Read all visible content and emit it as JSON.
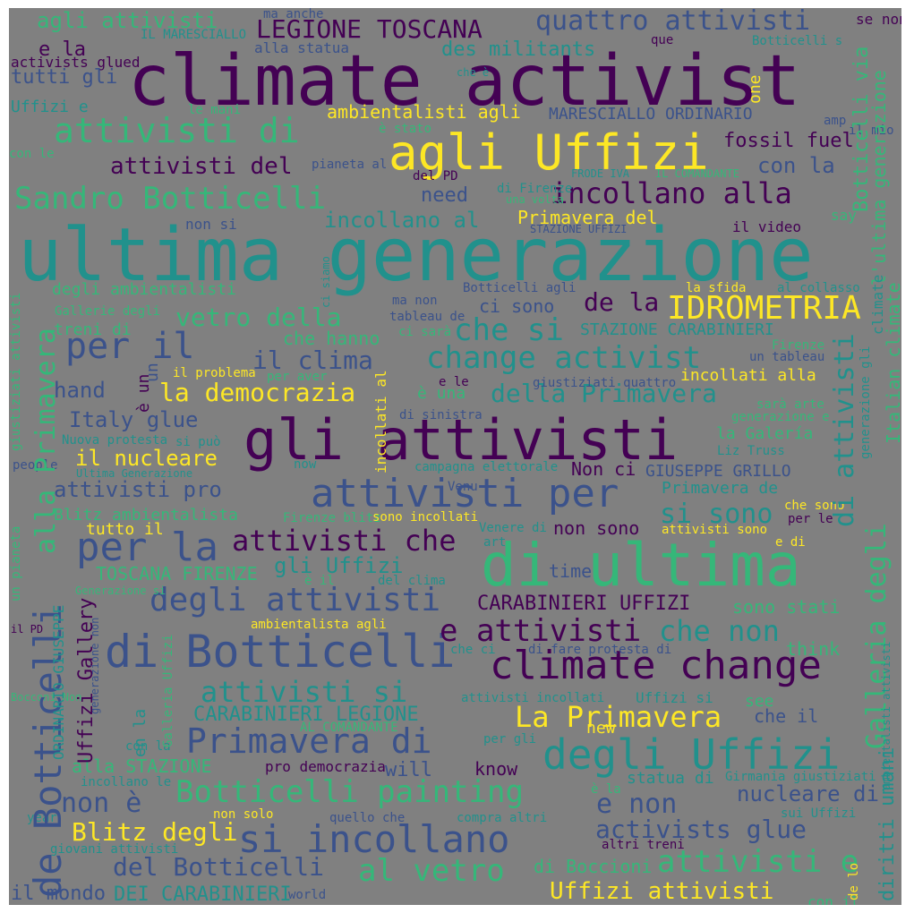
{
  "palette": {
    "background": "#808080",
    "dark_purple": "#440154",
    "indigo": "#3b528b",
    "teal": "#21918c",
    "green": "#35b779",
    "yellow": "#fde725"
  },
  "words": [
    {
      "text": "climate activist",
      "color": "dark_purple"
    },
    {
      "text": "ultima generazione",
      "color": "teal"
    },
    {
      "text": "gli attivisti",
      "color": "dark_purple"
    },
    {
      "text": "di ultima",
      "color": "green"
    },
    {
      "text": "agli Uffizi",
      "color": "yellow"
    },
    {
      "text": "attivisti per",
      "color": "indigo"
    },
    {
      "text": "di Botticelli",
      "color": "indigo"
    },
    {
      "text": "climate change",
      "color": "dark_purple"
    },
    {
      "text": "degli Uffizi",
      "color": "teal"
    },
    {
      "text": "si incollano",
      "color": "indigo"
    },
    {
      "text": "Botticelli painting",
      "color": "green"
    },
    {
      "text": "Primavera di",
      "color": "indigo"
    },
    {
      "text": "per il",
      "color": "indigo"
    },
    {
      "text": "per la",
      "color": "indigo"
    },
    {
      "text": "attivisti di",
      "color": "green"
    },
    {
      "text": "Sandro Botticelli",
      "color": "green"
    },
    {
      "text": "degli attivisti",
      "color": "indigo"
    },
    {
      "text": "change activist",
      "color": "teal"
    },
    {
      "text": "IDROMETRIA",
      "color": "yellow"
    },
    {
      "text": "LEGIONE TOSCANA",
      "color": "dark_purple"
    },
    {
      "text": "quattro attivisti",
      "color": "indigo"
    },
    {
      "text": "incollano alla",
      "color": "dark_purple"
    },
    {
      "text": "attivisti del",
      "color": "dark_purple"
    },
    {
      "text": "ambientalisti agli",
      "color": "yellow"
    },
    {
      "text": "MARESCIALLO ORDINARIO",
      "color": "indigo"
    },
    {
      "text": "fossil fuel",
      "color": "dark_purple"
    },
    {
      "text": "con la",
      "color": "indigo"
    },
    {
      "text": "need",
      "color": "indigo"
    },
    {
      "text": "incollano al",
      "color": "teal"
    },
    {
      "text": "Primavera del",
      "color": "yellow"
    },
    {
      "text": "non si",
      "color": "indigo"
    },
    {
      "text": "il video",
      "color": "dark_purple"
    },
    {
      "text": "degli ambientalisti",
      "color": "green"
    },
    {
      "text": "vetro della",
      "color": "green"
    },
    {
      "text": "che si",
      "color": "teal"
    },
    {
      "text": "ci sono",
      "color": "indigo"
    },
    {
      "text": "de la",
      "color": "dark_purple"
    },
    {
      "text": "che hanno",
      "color": "green"
    },
    {
      "text": "STAZIONE CARABINIERI",
      "color": "teal"
    },
    {
      "text": "il clima",
      "color": "indigo"
    },
    {
      "text": "la democrazia",
      "color": "yellow"
    },
    {
      "text": "della Primavera",
      "color": "teal"
    },
    {
      "text": "incollati alla",
      "color": "yellow"
    },
    {
      "text": "hand",
      "color": "indigo"
    },
    {
      "text": "Italy glue",
      "color": "indigo"
    },
    {
      "text": "è una",
      "color": "green"
    },
    {
      "text": "la Galería",
      "color": "green"
    },
    {
      "text": "il nucleare",
      "color": "yellow"
    },
    {
      "text": "attivisti pro",
      "color": "indigo"
    },
    {
      "text": "Non ci",
      "color": "dark_purple"
    },
    {
      "text": "GIUSEPPE GRILLO",
      "color": "indigo"
    },
    {
      "text": "Primavera de",
      "color": "teal"
    },
    {
      "text": "Blitz ambientalista",
      "color": "green"
    },
    {
      "text": "si sono",
      "color": "teal"
    },
    {
      "text": "attivisti che",
      "color": "dark_purple"
    },
    {
      "text": "tutto il",
      "color": "yellow"
    },
    {
      "text": "non sono",
      "color": "dark_purple"
    },
    {
      "text": "gli Uffizi",
      "color": "teal"
    },
    {
      "text": "TOSCANA FIRENZE",
      "color": "green"
    },
    {
      "text": "time",
      "color": "indigo"
    },
    {
      "text": "CARABINIERI UFFIZI",
      "color": "dark_purple"
    },
    {
      "text": "sono stati",
      "color": "green"
    },
    {
      "text": "e attivisti",
      "color": "dark_purple"
    },
    {
      "text": "che non",
      "color": "teal"
    },
    {
      "text": "think",
      "color": "green"
    },
    {
      "text": "attivisti si",
      "color": "teal"
    },
    {
      "text": "La Primavera",
      "color": "yellow"
    },
    {
      "text": "see",
      "color": "green"
    },
    {
      "text": "che il",
      "color": "indigo"
    },
    {
      "text": "CARABINIERI LEGIONE",
      "color": "teal"
    },
    {
      "text": "new",
      "color": "yellow"
    },
    {
      "text": "alla STAZIONE",
      "color": "green"
    },
    {
      "text": "pro democrazia",
      "color": "dark_purple"
    },
    {
      "text": "will",
      "color": "indigo"
    },
    {
      "text": "know",
      "color": "dark_purple"
    },
    {
      "text": "statua di",
      "color": "teal"
    },
    {
      "text": "non è",
      "color": "indigo"
    },
    {
      "text": "nucleare di",
      "color": "indigo"
    },
    {
      "text": "e non",
      "color": "indigo"
    },
    {
      "text": "activists glue",
      "color": "indigo"
    },
    {
      "text": "Blitz degli",
      "color": "yellow"
    },
    {
      "text": "al vetro",
      "color": "green"
    },
    {
      "text": "attivisti e",
      "color": "green"
    },
    {
      "text": "del Botticelli",
      "color": "indigo"
    },
    {
      "text": "di Boccioni",
      "color": "green"
    },
    {
      "text": "Uffizi attivisti",
      "color": "yellow"
    },
    {
      "text": "il mondo",
      "color": "indigo"
    },
    {
      "text": "DEI CARABINIERI",
      "color": "teal"
    },
    {
      "text": "militants écologistes",
      "color": "green"
    },
    {
      "text": "agli attivisti",
      "color": "green"
    },
    {
      "text": "e la",
      "color": "dark_purple"
    },
    {
      "text": "activists glued",
      "color": "dark_purple"
    },
    {
      "text": "tutti gli",
      "color": "indigo"
    },
    {
      "text": "Uffizi e",
      "color": "teal"
    },
    {
      "text": "con le",
      "color": "green"
    },
    {
      "text": "des militants",
      "color": "teal"
    },
    {
      "text": "alla statua",
      "color": "indigo"
    },
    {
      "text": "ma anche",
      "color": "indigo"
    },
    {
      "text": "IL MARESCIALLO",
      "color": "teal"
    },
    {
      "text": "que",
      "color": "dark_purple"
    },
    {
      "text": "Botticelli s",
      "color": "teal"
    },
    {
      "text": "se non",
      "color": "dark_purple"
    },
    {
      "text": "che è",
      "color": "teal"
    },
    {
      "text": "le mani",
      "color": "green"
    },
    {
      "text": "è stato",
      "color": "green"
    },
    {
      "text": "pianeta al",
      "color": "indigo"
    },
    {
      "text": "del PD",
      "color": "dark_purple"
    },
    {
      "text": "di Firenze",
      "color": "teal"
    },
    {
      "text": "FRODE IVA",
      "color": "teal"
    },
    {
      "text": "IL COMANDANTE",
      "color": "green"
    },
    {
      "text": "una volta",
      "color": "green"
    },
    {
      "text": "amp",
      "color": "indigo"
    },
    {
      "text": "il mio",
      "color": "indigo"
    },
    {
      "text": "say",
      "color": "green"
    },
    {
      "text": "STAZIONE UFFIZI",
      "color": "indigo"
    },
    {
      "text": "Botticelli agli",
      "color": "indigo"
    },
    {
      "text": "la sfida",
      "color": "yellow"
    },
    {
      "text": "al collasso",
      "color": "teal"
    },
    {
      "text": "Gallerie degli",
      "color": "green"
    },
    {
      "text": "ma non",
      "color": "indigo"
    },
    {
      "text": "tableau de",
      "color": "indigo"
    },
    {
      "text": "ci sarà",
      "color": "green"
    },
    {
      "text": "treni di",
      "color": "green"
    },
    {
      "text": "Firenze",
      "color": "green"
    },
    {
      "text": "un tableau",
      "color": "indigo"
    },
    {
      "text": "il problema",
      "color": "yellow"
    },
    {
      "text": "per aver",
      "color": "green"
    },
    {
      "text": "e le",
      "color": "dark_purple"
    },
    {
      "text": "giustiziati quattro",
      "color": "indigo"
    },
    {
      "text": "sarà arte",
      "color": "green"
    },
    {
      "text": "di sinistra",
      "color": "indigo"
    },
    {
      "text": "generazione e",
      "color": "green"
    },
    {
      "text": "Nuova protesta",
      "color": "teal"
    },
    {
      "text": "si può",
      "color": "teal"
    },
    {
      "text": "Liz Truss",
      "color": "teal"
    },
    {
      "text": "people",
      "color": "indigo"
    },
    {
      "text": "Ultima Generazione",
      "color": "teal"
    },
    {
      "text": "now",
      "color": "teal"
    },
    {
      "text": "campagna elettorale",
      "color": "teal"
    },
    {
      "text": "Venu",
      "color": "indigo"
    },
    {
      "text": "Firenze blitz",
      "color": "green"
    },
    {
      "text": "sono incollati",
      "color": "yellow"
    },
    {
      "text": "che sono",
      "color": "yellow"
    },
    {
      "text": "per le",
      "color": "dark_purple"
    },
    {
      "text": "Venere di",
      "color": "teal"
    },
    {
      "text": "attivisti sono",
      "color": "yellow"
    },
    {
      "text": "art",
      "color": "teal"
    },
    {
      "text": "e di",
      "color": "yellow"
    },
    {
      "text": "è il",
      "color": "green"
    },
    {
      "text": "del clima",
      "color": "teal"
    },
    {
      "text": "Generazione si",
      "color": "green"
    },
    {
      "text": "ambientalista agli",
      "color": "yellow"
    },
    {
      "text": "il PD",
      "color": "dark_purple"
    },
    {
      "text": "che ci",
      "color": "teal"
    },
    {
      "text": "di fare protesta di",
      "color": "indigo"
    },
    {
      "text": "attivisti incollati",
      "color": "teal"
    },
    {
      "text": "Uffizi si",
      "color": "teal"
    },
    {
      "text": "AL COMANDANTE",
      "color": "green"
    },
    {
      "text": "per gli",
      "color": "teal"
    },
    {
      "text": "Bocconi Non",
      "color": "green"
    },
    {
      "text": "con la",
      "color": "teal"
    },
    {
      "text": "Girmania giustiziati",
      "color": "teal"
    },
    {
      "text": "incollano le",
      "color": "teal"
    },
    {
      "text": "è la",
      "color": "green"
    },
    {
      "text": "non solo",
      "color": "yellow"
    },
    {
      "text": "year",
      "color": "teal"
    },
    {
      "text": "quello che",
      "color": "indigo"
    },
    {
      "text": "compra altri",
      "color": "teal"
    },
    {
      "text": "sui Uffizi",
      "color": "teal"
    },
    {
      "text": "altri treni",
      "color": "dark_purple"
    },
    {
      "text": "giovani attivisti",
      "color": "teal"
    },
    {
      "text": "world",
      "color": "indigo"
    },
    {
      "text": "con il",
      "color": "green"
    },
    {
      "text": "un",
      "color": "indigo"
    },
    {
      "text": "è un",
      "color": "dark_purple"
    },
    {
      "text": "one",
      "color": "yellow"
    },
    {
      "text": "Botticelli via",
      "color": "green"
    },
    {
      "text": "l'ultima generazione",
      "color": "green"
    },
    {
      "text": "climate",
      "color": "teal"
    },
    {
      "text": "Italian climate",
      "color": "green"
    },
    {
      "text": "generazione gli",
      "color": "teal"
    },
    {
      "text": "di attivisti",
      "color": "teal"
    },
    {
      "text": "Galleria degli",
      "color": "green"
    },
    {
      "text": "diritti umani",
      "color": "teal"
    },
    {
      "text": "ambientalisti attivisti",
      "color": "teal"
    },
    {
      "text": "de lo",
      "color": "yellow"
    },
    {
      "text": "alla Primavera",
      "color": "green"
    },
    {
      "text": "de Botticelli",
      "color": "indigo"
    },
    {
      "text": "ORDINARIO GIUSEPPE",
      "color": "teal"
    },
    {
      "text": "Uffizi Gallery",
      "color": "dark_purple"
    },
    {
      "text": "en la",
      "color": "teal"
    },
    {
      "text": "Galleria Uffizi",
      "color": "green"
    },
    {
      "text": "generazione non",
      "color": "indigo"
    },
    {
      "text": "giustiziati attivisti",
      "color": "green"
    },
    {
      "text": "un pianeta",
      "color": "green"
    },
    {
      "text": "incollati al",
      "color": "yellow"
    },
    {
      "text": "ci siamo",
      "color": "teal"
    }
  ]
}
